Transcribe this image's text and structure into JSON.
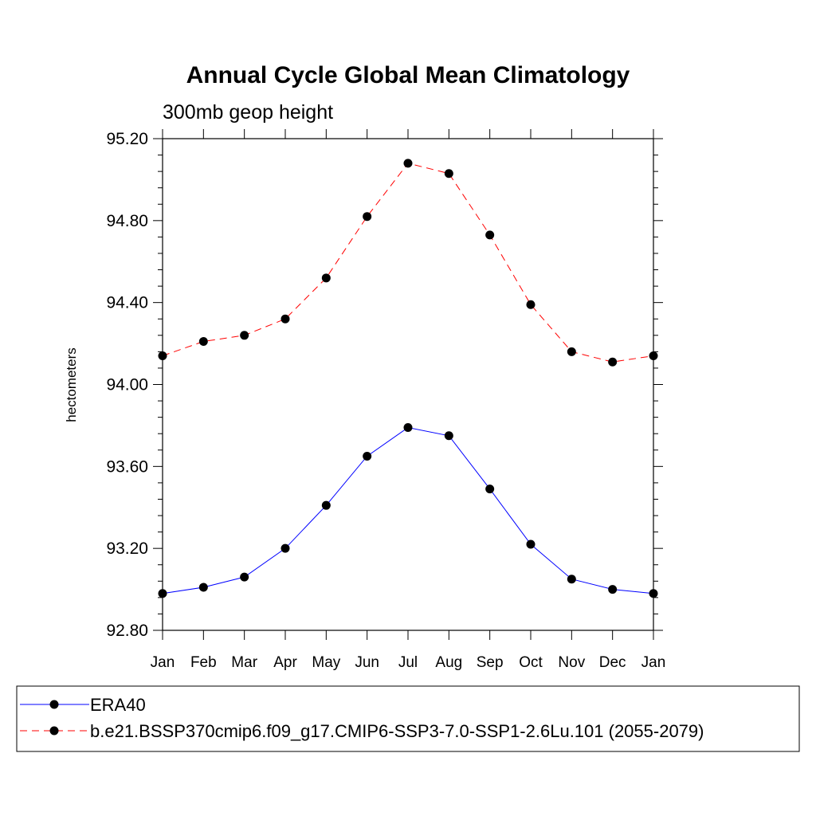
{
  "chart_data": {
    "type": "line",
    "title": "Annual Cycle Global Mean Climatology",
    "subtitle": "300mb geop height",
    "xlabel": "",
    "ylabel": "hectometers",
    "categories": [
      "Jan",
      "Feb",
      "Mar",
      "Apr",
      "May",
      "Jun",
      "Jul",
      "Aug",
      "Sep",
      "Oct",
      "Nov",
      "Dec",
      "Jan"
    ],
    "ylim": [
      92.8,
      95.2
    ],
    "yticks": [
      "92.80",
      "93.20",
      "93.60",
      "94.00",
      "94.40",
      "94.80",
      "95.20"
    ],
    "grid": false,
    "legend_position": "bottom",
    "series": [
      {
        "name": "ERA40",
        "color": "#0000ff",
        "line_style": "solid",
        "marker": "filled-circle",
        "values": [
          92.98,
          93.01,
          93.06,
          93.2,
          93.41,
          93.65,
          93.79,
          93.75,
          93.49,
          93.22,
          93.05,
          93.0,
          92.98
        ]
      },
      {
        "name": "b.e21.BSSP370cmip6.f09_g17.CMIP6-SSP3-7.0-SSP1-2.6Lu.101 (2055-2079)",
        "color": "#ff0000",
        "line_style": "dashed",
        "marker": "filled-circle",
        "values": [
          94.14,
          94.21,
          94.24,
          94.32,
          94.52,
          94.82,
          95.08,
          95.03,
          94.73,
          94.39,
          94.16,
          94.11,
          94.14
        ]
      }
    ]
  }
}
